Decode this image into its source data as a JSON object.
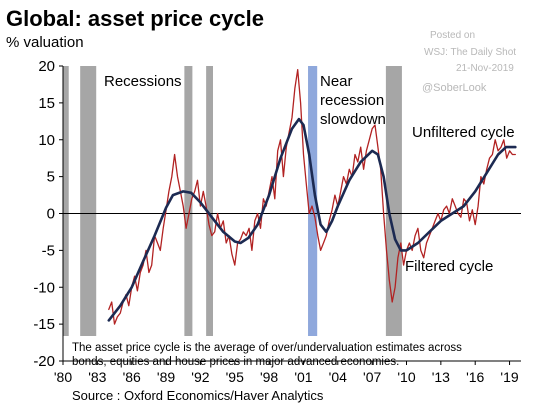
{
  "header": {
    "title": "Global: asset price cycle",
    "subtitle": "% valuation"
  },
  "watermark": {
    "line1": "Posted on",
    "line2": "WSJ: The Daily Shot",
    "line3": "21-Nov-2019",
    "handle": "@SoberLook"
  },
  "footer": {
    "note": "The asset price cycle is the average of over/undervaluation estimates across bonds, equities and house prices in major advanced economies.",
    "source": "Source : Oxford Economics/Haver Analytics"
  },
  "chart_data": {
    "type": "line",
    "xlim": [
      1980,
      2020
    ],
    "ylim": [
      -20,
      20
    ],
    "x_ticks": [
      1980,
      1983,
      1986,
      1989,
      1992,
      1995,
      1998,
      2001,
      2004,
      2007,
      2010,
      2013,
      2016,
      2019
    ],
    "x_tick_labels": [
      "'80",
      "'83",
      "'86",
      "'89",
      "'92",
      "'95",
      "'98",
      "'01",
      "'04",
      "'07",
      "'10",
      "'13",
      "'16",
      "'19"
    ],
    "y_ticks": [
      -20,
      -15,
      -10,
      -5,
      0,
      5,
      10,
      15,
      20
    ],
    "zero_line": true,
    "shaded_periods": [
      {
        "kind": "recession",
        "start": 1980.0,
        "end": 1980.5
      },
      {
        "kind": "recession",
        "start": 1981.5,
        "end": 1982.9
      },
      {
        "kind": "recession",
        "start": 1990.6,
        "end": 1991.3
      },
      {
        "kind": "recession",
        "start": 1992.5,
        "end": 1993.1
      },
      {
        "kind": "recession",
        "start": 2008.2,
        "end": 2009.6
      },
      {
        "kind": "slowdown",
        "start": 2001.4,
        "end": 2002.2
      }
    ],
    "annotations": [
      {
        "text": "Recessions"
      },
      {
        "text": "Near recession slowdown"
      },
      {
        "text": "Unfiltered cycle"
      },
      {
        "text": "Filtered cycle"
      }
    ],
    "series": [
      {
        "name": "Unfiltered cycle",
        "color": "#b22222",
        "points": [
          [
            1984.0,
            -13.0
          ],
          [
            1984.25,
            -12.0
          ],
          [
            1984.5,
            -15.0
          ],
          [
            1984.75,
            -14.0
          ],
          [
            1985.0,
            -13.5
          ],
          [
            1985.25,
            -12.0
          ],
          [
            1985.5,
            -11.0
          ],
          [
            1985.75,
            -12.5
          ],
          [
            1986.0,
            -10.0
          ],
          [
            1986.25,
            -8.5
          ],
          [
            1986.5,
            -10.5
          ],
          [
            1986.75,
            -8.0
          ],
          [
            1987.0,
            -7.0
          ],
          [
            1987.25,
            -5.0
          ],
          [
            1987.5,
            -8.0
          ],
          [
            1987.75,
            -7.0
          ],
          [
            1988.0,
            -3.0
          ],
          [
            1988.25,
            -4.0
          ],
          [
            1988.5,
            -5.0
          ],
          [
            1988.75,
            -2.0
          ],
          [
            1989.0,
            0.5
          ],
          [
            1989.25,
            3.0
          ],
          [
            1989.5,
            5.0
          ],
          [
            1989.75,
            8.0
          ],
          [
            1990.0,
            5.0
          ],
          [
            1990.25,
            3.0
          ],
          [
            1990.5,
            1.0
          ],
          [
            1990.75,
            -2.0
          ],
          [
            1991.0,
            0.0
          ],
          [
            1991.25,
            2.0
          ],
          [
            1991.5,
            3.0
          ],
          [
            1991.75,
            4.5
          ],
          [
            1992.0,
            1.0
          ],
          [
            1992.25,
            3.0
          ],
          [
            1992.5,
            1.0
          ],
          [
            1992.75,
            -1.5
          ],
          [
            1993.0,
            -3.0
          ],
          [
            1993.25,
            -2.5
          ],
          [
            1993.5,
            0.0
          ],
          [
            1993.75,
            -2.0
          ],
          [
            1994.0,
            -1.0
          ],
          [
            1994.25,
            -4.0
          ],
          [
            1994.5,
            -3.0
          ],
          [
            1994.75,
            -5.5
          ],
          [
            1995.0,
            -7.0
          ],
          [
            1995.25,
            -4.0
          ],
          [
            1995.5,
            -3.5
          ],
          [
            1995.75,
            -2.5
          ],
          [
            1996.0,
            -3.0
          ],
          [
            1996.25,
            -2.0
          ],
          [
            1996.5,
            -5.0
          ],
          [
            1996.75,
            -1.0
          ],
          [
            1997.0,
            0.0
          ],
          [
            1997.25,
            -2.0
          ],
          [
            1997.5,
            2.0
          ],
          [
            1997.75,
            1.0
          ],
          [
            1998.0,
            3.0
          ],
          [
            1998.25,
            5.0
          ],
          [
            1998.5,
            2.0
          ],
          [
            1998.75,
            8.5
          ],
          [
            1999.0,
            10.0
          ],
          [
            1999.25,
            5.0
          ],
          [
            1999.5,
            9.0
          ],
          [
            1999.75,
            11.0
          ],
          [
            2000.0,
            13.0
          ],
          [
            2000.25,
            17.0
          ],
          [
            2000.5,
            19.5
          ],
          [
            2000.75,
            15.0
          ],
          [
            2001.0,
            8.0
          ],
          [
            2001.25,
            4.0
          ],
          [
            2001.5,
            0.0
          ],
          [
            2001.75,
            1.0
          ],
          [
            2002.0,
            -0.5
          ],
          [
            2002.25,
            -3.0
          ],
          [
            2002.5,
            -5.0
          ],
          [
            2002.75,
            -4.0
          ],
          [
            2003.0,
            -3.0
          ],
          [
            2003.25,
            -1.0
          ],
          [
            2003.5,
            0.5
          ],
          [
            2003.75,
            2.5
          ],
          [
            2004.0,
            1.0
          ],
          [
            2004.25,
            3.0
          ],
          [
            2004.5,
            5.0
          ],
          [
            2004.75,
            4.0
          ],
          [
            2005.0,
            6.0
          ],
          [
            2005.25,
            5.0
          ],
          [
            2005.5,
            8.0
          ],
          [
            2005.75,
            7.0
          ],
          [
            2006.0,
            9.0
          ],
          [
            2006.25,
            6.0
          ],
          [
            2006.5,
            8.5
          ],
          [
            2006.75,
            10.0
          ],
          [
            2007.0,
            11.5
          ],
          [
            2007.25,
            12.0
          ],
          [
            2007.5,
            9.0
          ],
          [
            2007.75,
            6.0
          ],
          [
            2008.0,
            0.0
          ],
          [
            2008.25,
            -5.0
          ],
          [
            2008.5,
            -9.0
          ],
          [
            2008.75,
            -12.0
          ],
          [
            2009.0,
            -10.0
          ],
          [
            2009.25,
            -6.0
          ],
          [
            2009.5,
            -4.0
          ],
          [
            2009.75,
            -7.0
          ],
          [
            2010.0,
            -5.0
          ],
          [
            2010.25,
            -4.0
          ],
          [
            2010.5,
            -5.0
          ],
          [
            2010.75,
            -3.0
          ],
          [
            2011.0,
            -2.0
          ],
          [
            2011.25,
            -5.0
          ],
          [
            2011.5,
            -6.0
          ],
          [
            2011.75,
            -4.0
          ],
          [
            2012.0,
            -3.0
          ],
          [
            2012.25,
            -2.0
          ],
          [
            2012.5,
            -1.0
          ],
          [
            2012.75,
            0.0
          ],
          [
            2013.0,
            -1.0
          ],
          [
            2013.25,
            0.5
          ],
          [
            2013.5,
            1.0
          ],
          [
            2013.75,
            0.0
          ],
          [
            2014.0,
            2.0
          ],
          [
            2014.25,
            1.0
          ],
          [
            2014.5,
            0.0
          ],
          [
            2014.75,
            -0.5
          ],
          [
            2015.0,
            2.0
          ],
          [
            2015.25,
            1.5
          ],
          [
            2015.5,
            -1.0
          ],
          [
            2015.75,
            0.5
          ],
          [
            2016.0,
            -1.5
          ],
          [
            2016.25,
            1.0
          ],
          [
            2016.5,
            5.0
          ],
          [
            2016.75,
            4.0
          ],
          [
            2017.0,
            6.0
          ],
          [
            2017.25,
            7.5
          ],
          [
            2017.5,
            8.0
          ],
          [
            2017.75,
            10.0
          ],
          [
            2018.0,
            8.5
          ],
          [
            2018.25,
            9.0
          ],
          [
            2018.5,
            10.0
          ],
          [
            2018.75,
            7.5
          ],
          [
            2019.0,
            8.5
          ],
          [
            2019.25,
            8.0
          ],
          [
            2019.5,
            8.0
          ]
        ]
      },
      {
        "name": "Filtered cycle",
        "color": "#1c2a52",
        "points": [
          [
            1984.0,
            -14.5
          ],
          [
            1985.0,
            -12.5
          ],
          [
            1986.0,
            -10.0
          ],
          [
            1987.0,
            -6.5
          ],
          [
            1988.0,
            -3.0
          ],
          [
            1989.0,
            0.8
          ],
          [
            1989.6,
            2.5
          ],
          [
            1990.5,
            3.0
          ],
          [
            1991.2,
            2.8
          ],
          [
            1992.0,
            1.5
          ],
          [
            1993.0,
            -0.5
          ],
          [
            1994.0,
            -2.5
          ],
          [
            1995.0,
            -3.8
          ],
          [
            1995.5,
            -4.0
          ],
          [
            1996.2,
            -3.3
          ],
          [
            1997.0,
            -1.5
          ],
          [
            1998.0,
            2.5
          ],
          [
            1999.0,
            7.5
          ],
          [
            2000.0,
            11.5
          ],
          [
            2000.6,
            12.8
          ],
          [
            2001.0,
            12.0
          ],
          [
            2001.5,
            8.0
          ],
          [
            2002.0,
            2.5
          ],
          [
            2002.5,
            -1.5
          ],
          [
            2003.0,
            -2.5
          ],
          [
            2003.5,
            -1.0
          ],
          [
            2004.0,
            1.0
          ],
          [
            2005.0,
            4.5
          ],
          [
            2006.0,
            7.0
          ],
          [
            2007.0,
            8.5
          ],
          [
            2007.5,
            8.0
          ],
          [
            2008.0,
            5.0
          ],
          [
            2008.5,
            0.0
          ],
          [
            2009.0,
            -3.5
          ],
          [
            2009.5,
            -5.0
          ],
          [
            2010.0,
            -5.0
          ],
          [
            2011.0,
            -4.0
          ],
          [
            2012.0,
            -2.5
          ],
          [
            2013.0,
            -1.0
          ],
          [
            2014.0,
            0.0
          ],
          [
            2015.0,
            1.0
          ],
          [
            2016.0,
            3.0
          ],
          [
            2017.0,
            5.5
          ],
          [
            2018.0,
            8.0
          ],
          [
            2018.7,
            9.0
          ],
          [
            2019.5,
            9.0
          ]
        ]
      }
    ]
  }
}
